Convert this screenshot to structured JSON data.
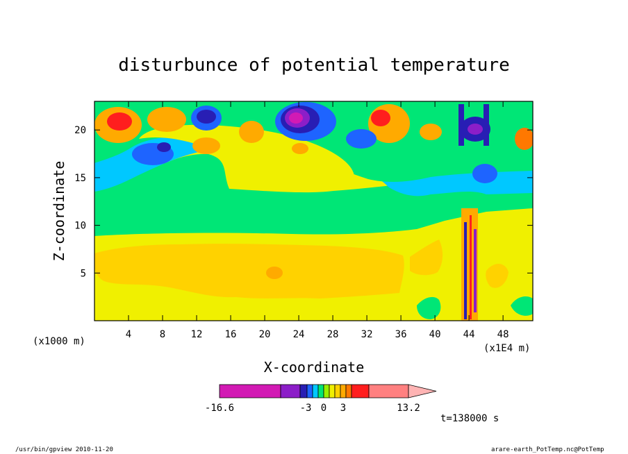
{
  "chart_data": {
    "type": "heatmap",
    "title": "disturbunce of potential temperature",
    "xlabel": "X-coordinate",
    "ylabel": "Z-coordinate",
    "x_unit_left": "(x1000 m)",
    "x_unit_right": "(x1E4 m)",
    "xlim": [
      0,
      51.5
    ],
    "ylim": [
      0,
      23
    ],
    "x_ticks": [
      4,
      8,
      12,
      16,
      20,
      24,
      28,
      32,
      36,
      40,
      44,
      48
    ],
    "y_ticks": [
      5,
      10,
      15,
      20
    ],
    "time_label": "t=138000 s",
    "colorbar": {
      "colors": [
        "#d21ab4",
        "#8c1ec8",
        "#281eb4",
        "#1e64ff",
        "#00c8ff",
        "#00e676",
        "#96f000",
        "#f0f000",
        "#ffd200",
        "#ffaa00",
        "#ff7800",
        "#ff1e1e",
        "#ff8080",
        "#ffb4b4"
      ],
      "labels": [
        "-16.6",
        "-3",
        "0",
        "3",
        "13.2"
      ]
    },
    "field_regions": [
      {
        "x": [
          0,
          51.5
        ],
        "z": [
          0,
          23
        ],
        "level": "0 to 1.5",
        "color": "#f0f000"
      },
      {
        "x": [
          0,
          51.5
        ],
        "z": [
          9.5,
          13.5
        ],
        "level": "-1.5 to 0",
        "color": "#00e676"
      },
      {
        "x": [
          0,
          37
        ],
        "z": [
          2.5,
          7.5
        ],
        "level": "1.5 to 3",
        "color": "#ffd200"
      },
      {
        "x": [
          19.5,
          21.5
        ],
        "z": [
          4.6,
          5.6
        ],
        "level": "3 to 5",
        "color": "#ffaa00"
      },
      {
        "x": [
          0,
          51.5
        ],
        "z": [
          13.5,
          16.5
        ],
        "level": "-3 to -1.5",
        "color": "#00c8ff"
      },
      {
        "x": [
          1.5,
          5
        ],
        "z": [
          19.5,
          22
        ],
        "level": "5 to 9",
        "color": "#ff1e1e"
      },
      {
        "x": [
          22.5,
          25
        ],
        "z": [
          20.3,
          22
        ],
        "level": "-16.6 to -9",
        "color": "#d21ab4"
      },
      {
        "x": [
          12,
          15
        ],
        "z": [
          20,
          22
        ],
        "level": "-9 to -5",
        "color": "#281eb4"
      },
      {
        "x": [
          43.5,
          45.5
        ],
        "z": [
          19.5,
          21
        ],
        "level": "-9 to -5",
        "color": "#8c1ec8"
      }
    ]
  },
  "footer": {
    "left": "/usr/bin/gpview  2010-11-20",
    "right": "arare-earth_PotTemp.nc@PotTemp"
  }
}
